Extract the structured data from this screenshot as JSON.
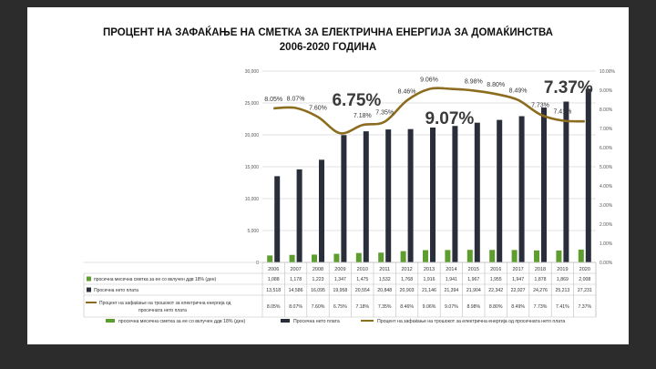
{
  "title": {
    "line1": "ПРОЦЕНТ НА ЗАФАЌАЊЕ НА СМЕТКА ЗА ЕЛЕКТРИЧНА ЕНЕРГИЈА ЗА ДОМАЌИНСТВА",
    "line2": "2006-2020 ГОДИНА"
  },
  "colors": {
    "bill_bar": "#5e9e2e",
    "salary_bar": "#2a2e3b",
    "percent_line": "#8c6d1f",
    "grid": "#d9d9d9"
  },
  "legend": {
    "bill": "просечна месечна сметка за ее со вклучен ддв 18% (ден)",
    "salary": "Просечна нето плата",
    "percent": "Процент на зафаќање на трошокот за електрична енергија од просечната нето плата"
  },
  "callouts": [
    "6.75%",
    "9.07%",
    "7.37%"
  ],
  "chart_data": {
    "type": "bar",
    "categories": [
      "2006",
      "2007",
      "2008",
      "2009",
      "2010",
      "2011",
      "2012",
      "2013",
      "2014",
      "2015",
      "2016",
      "2017",
      "2018",
      "2019",
      "2020"
    ],
    "series": [
      {
        "name": "просечна месечна сметка за ее со вклучен ддв 18% (ден)",
        "values": [
          1088,
          1178,
          1223,
          1347,
          1475,
          1532,
          1768,
          1916,
          1941,
          1967,
          1955,
          1947,
          1878,
          1869,
          2008
        ],
        "display": [
          "1,088",
          "1,178",
          "1,223",
          "1,347",
          "1,475",
          "1,532",
          "1,768",
          "1,916",
          "1,941",
          "1,967",
          "1,955",
          "1,947",
          "1,878",
          "1,869",
          "2,008"
        ]
      },
      {
        "name": "Просечна нето плата",
        "values": [
          13518,
          14586,
          16095,
          19958,
          20554,
          20848,
          20903,
          21146,
          21394,
          21904,
          22342,
          22927,
          24276,
          25213,
          27231
        ],
        "display": [
          "13,518",
          "14,586",
          "16,095",
          "19,958",
          "20,554",
          "20,848",
          "20,903",
          "21,146",
          "21,394",
          "21,904",
          "22,342",
          "22,927",
          "24,276",
          "25,213",
          "27,231"
        ]
      },
      {
        "name": "Процент на зафаќање на трошокот за електрична енергија од просечната нето плата",
        "type": "line",
        "axis": "right",
        "values": [
          8.05,
          8.07,
          7.6,
          6.75,
          7.18,
          7.35,
          8.46,
          9.06,
          9.07,
          8.98,
          8.8,
          8.49,
          7.73,
          7.41,
          7.37
        ],
        "display": [
          "8.05%",
          "8.07%",
          "7.60%",
          "6.75%",
          "7.18%",
          "7.35%",
          "8.46%",
          "9.06%",
          "9.07%",
          "8.98%",
          "8.80%",
          "8.49%",
          "7.73%",
          "7.41%",
          "7.37%"
        ],
        "labels": [
          "8.05%",
          "8.07%",
          "7.60%",
          "",
          "7.18%",
          "7.35%",
          "8.46%",
          "9.06%",
          "",
          "8.98%",
          "8.80%",
          "8.49%",
          "7.73%",
          "7.41%",
          ""
        ]
      }
    ],
    "left_axis": {
      "min": 0,
      "max": 30000,
      "step": 5000,
      "ticks": [
        "0",
        "5,000",
        "10,000",
        "15,000",
        "20,000",
        "25,000",
        "30,000"
      ]
    },
    "right_axis": {
      "min": 0,
      "max": 10,
      "step": 1,
      "ticks": [
        "0.00%",
        "1.00%",
        "2.00%",
        "3.00%",
        "4.00%",
        "5.00%",
        "6.00%",
        "7.00%",
        "8.00%",
        "9.00%",
        "10.00%"
      ]
    },
    "grid": true,
    "legend_position": "bottom"
  }
}
